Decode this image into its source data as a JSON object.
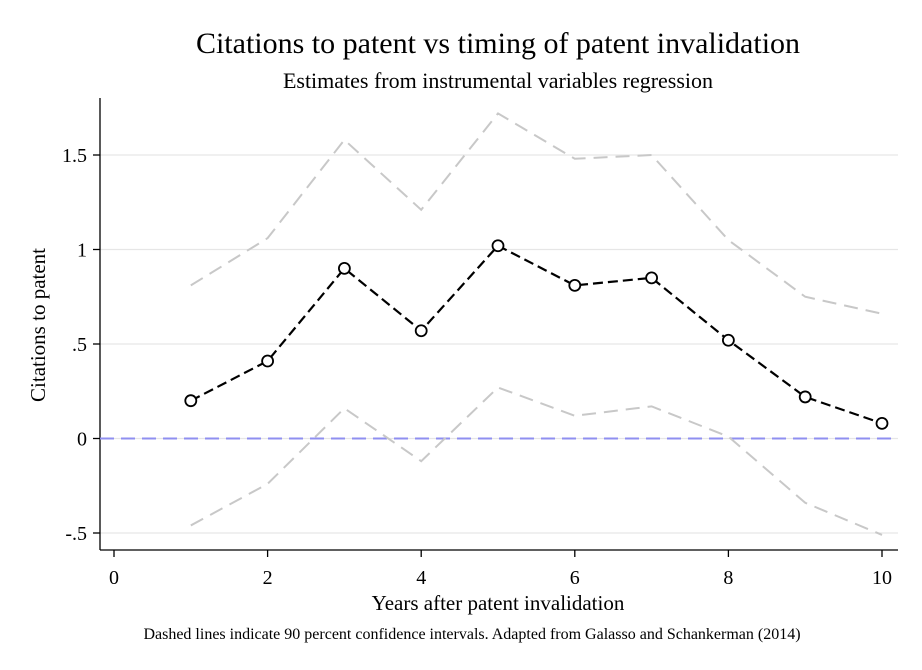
{
  "chart_data": {
    "type": "line",
    "title": "Citations to patent vs timing of patent invalidation",
    "subtitle": "Estimates from instrumental variables regression",
    "xlabel": "Years after patent invalidation",
    "ylabel": "Citations to patent",
    "note": "Dashed lines indicate 90 percent confidence intervals. Adapted from Galasso and Schankerman (2014)",
    "xlim": [
      0,
      10
    ],
    "ylim": [
      -0.5,
      1.5
    ],
    "x_ticks": [
      0,
      2,
      4,
      6,
      8,
      10
    ],
    "x_tick_labels": [
      "0",
      "2",
      "4",
      "6",
      "8",
      "10"
    ],
    "y_ticks": [
      -0.5,
      0,
      0.5,
      1,
      1.5
    ],
    "y_tick_labels": [
      "-.5",
      "0",
      ".5",
      "1",
      "1.5"
    ],
    "grid": true,
    "reference_line": {
      "y": 0,
      "color": "#8f8ff0"
    },
    "x": [
      1,
      2,
      3,
      4,
      5,
      6,
      7,
      8,
      9,
      10
    ],
    "series": [
      {
        "role": "estimate",
        "values": [
          0.2,
          0.41,
          0.9,
          0.57,
          1.02,
          0.81,
          0.85,
          0.52,
          0.22,
          0.08
        ],
        "color": "#000000",
        "markers": true
      },
      {
        "role": "upper-ci",
        "values": [
          0.81,
          1.06,
          1.58,
          1.21,
          1.72,
          1.48,
          1.5,
          1.05,
          0.75,
          0.66
        ],
        "color": "#c8c8c8",
        "markers": false
      },
      {
        "role": "lower-ci",
        "values": [
          -0.46,
          -0.24,
          0.16,
          -0.12,
          0.27,
          0.12,
          0.17,
          0.01,
          -0.34,
          -0.51
        ],
        "color": "#c8c8c8",
        "markers": false
      }
    ]
  }
}
